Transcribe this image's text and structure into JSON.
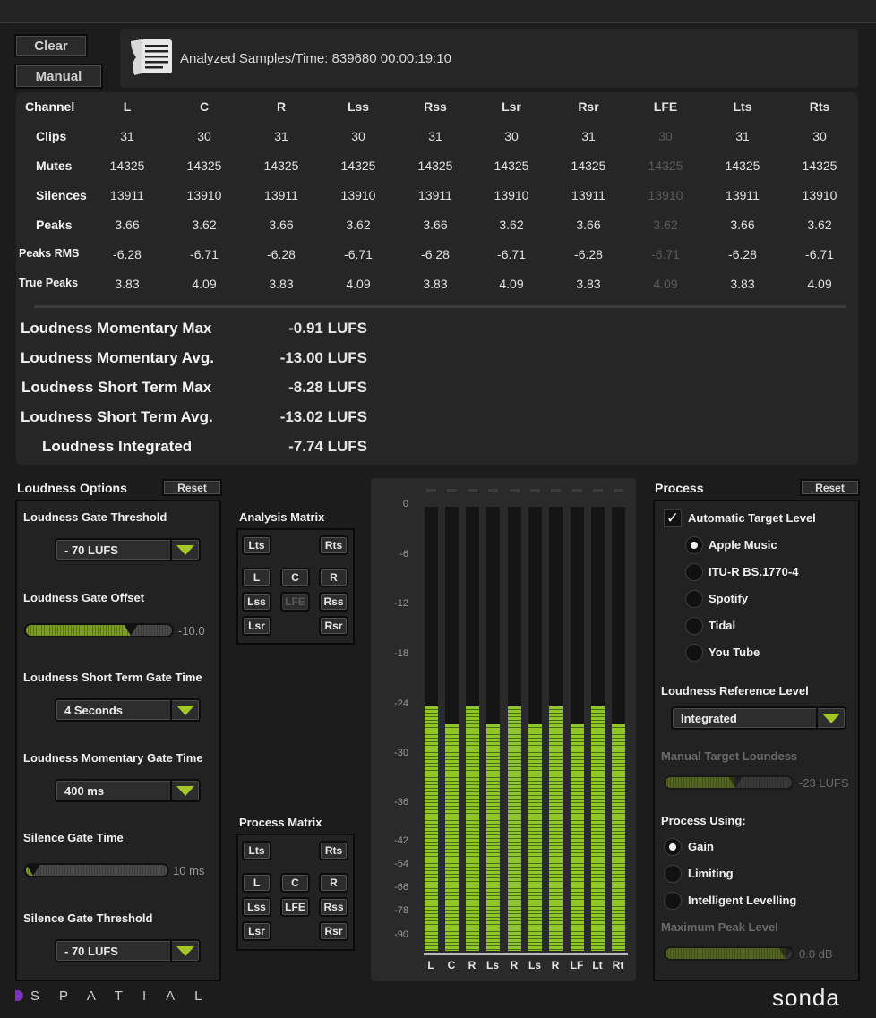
{
  "toolbar": {
    "clear_label": "Clear",
    "manual_label": "Manual"
  },
  "info": {
    "analyzed_text": "Analyzed Samples/Time: 839680  00:00:19:10"
  },
  "stats": {
    "channel_header": "Channel",
    "channels": [
      "L",
      "C",
      "R",
      "Lss",
      "Rss",
      "Lsr",
      "Rsr",
      "LFE",
      "Lts",
      "Rts"
    ],
    "rows": [
      {
        "label": "Clips",
        "values": [
          "31",
          "30",
          "31",
          "30",
          "31",
          "30",
          "31",
          "30",
          "31",
          "30"
        ]
      },
      {
        "label": "Mutes",
        "values": [
          "14325",
          "14325",
          "14325",
          "14325",
          "14325",
          "14325",
          "14325",
          "14325",
          "14325",
          "14325"
        ]
      },
      {
        "label": "Silences",
        "values": [
          "13911",
          "13910",
          "13911",
          "13910",
          "13911",
          "13910",
          "13911",
          "13910",
          "13911",
          "13910"
        ]
      },
      {
        "label": "Peaks",
        "values": [
          "3.66",
          "3.62",
          "3.66",
          "3.62",
          "3.66",
          "3.62",
          "3.66",
          "3.62",
          "3.66",
          "3.62"
        ]
      },
      {
        "label": "Peaks RMS",
        "values": [
          "-6.28",
          "-6.71",
          "-6.28",
          "-6.71",
          "-6.28",
          "-6.71",
          "-6.28",
          "-6.71",
          "-6.28",
          "-6.71"
        ]
      },
      {
        "label": "True Peaks",
        "values": [
          "3.83",
          "4.09",
          "3.83",
          "4.09",
          "3.83",
          "4.09",
          "3.83",
          "4.09",
          "3.83",
          "4.09"
        ]
      }
    ]
  },
  "loudness": [
    {
      "label": "Loudness Momentary Max",
      "value": "-0.91 LUFS"
    },
    {
      "label": "Loudness Momentary Avg.",
      "value": "-13.00 LUFS"
    },
    {
      "label": "Loudness Short Term Max",
      "value": "-8.28 LUFS"
    },
    {
      "label": "Loudness Short Term Avg.",
      "value": "-13.02 LUFS"
    },
    {
      "label": "Loudness Integrated",
      "value": "-7.74 LUFS"
    }
  ],
  "loudness_options": {
    "title": "Loudness Options",
    "reset_label": "Reset",
    "gate_threshold": {
      "label": "Loudness Gate Threshold",
      "value": "- 70 LUFS"
    },
    "gate_offset": {
      "label": "Loudness Gate Offset",
      "value_text": "-10.0",
      "fraction": 0.72
    },
    "short_term_gate": {
      "label": "Loudness Short Term Gate Time",
      "value": "4 Seconds"
    },
    "momentary_gate": {
      "label": "Loudness Momentary Gate Time",
      "value": "400 ms"
    },
    "silence_gate_time": {
      "label": "Silence Gate Time",
      "value_text": "10 ms",
      "fraction": 0.05
    },
    "silence_gate_threshold": {
      "label": "Silence Gate Threshold",
      "value": "- 70 LUFS"
    }
  },
  "analysis_matrix": {
    "title": "Analysis Matrix",
    "buttons": [
      "Lts",
      "Rts",
      "L",
      "C",
      "R",
      "Lss",
      "LFE",
      "Rss",
      "Lsr",
      "Rsr"
    ]
  },
  "process_matrix": {
    "title": "Process Matrix",
    "buttons": [
      "Lts",
      "Rts",
      "L",
      "C",
      "R",
      "Lss",
      "LFE",
      "Rss",
      "Lsr",
      "Rsr"
    ]
  },
  "meter": {
    "ticks": [
      "0",
      "-6",
      "-12",
      "-18",
      "-24",
      "-30",
      "-36",
      "-42",
      "-54",
      "-66",
      "-78",
      "-90"
    ],
    "channel_labels": [
      "L",
      "C",
      "R",
      "Ls",
      "R",
      "Ls",
      "R",
      "LF",
      "Lt",
      "Rt"
    ],
    "levels": [
      0.55,
      0.51,
      0.55,
      0.51,
      0.55,
      0.51,
      0.55,
      0.51,
      0.55,
      0.51
    ]
  },
  "process": {
    "title": "Process",
    "reset_label": "Reset",
    "auto_target_label": "Automatic Target Level",
    "auto_target_checked": true,
    "targets": [
      "Apple Music",
      "ITU-R BS.1770-4",
      "Spotify",
      "Tidal",
      "You Tube"
    ],
    "selected_target": 0,
    "reference_label": "Loudness Reference Level",
    "reference_value": "Integrated",
    "manual_target_label": "Manual Target Loundess",
    "manual_target_value": "-23 LUFS",
    "manual_target_fraction": 0.55,
    "process_using_label": "Process Using:",
    "process_options": [
      "Gain",
      "Limiting",
      "Intelligent Levelling"
    ],
    "selected_process": 0,
    "max_peak_label": "Maximum Peak Level",
    "max_peak_value": "0.0 dB",
    "max_peak_fraction": 0.95
  },
  "footer": {
    "brand_left": "SPATIAL",
    "brand_right": "sonda"
  },
  "colors": {
    "accent_green": "#a4c728",
    "meter_green": "#8fc62a",
    "purple": "#7a2fc0"
  }
}
